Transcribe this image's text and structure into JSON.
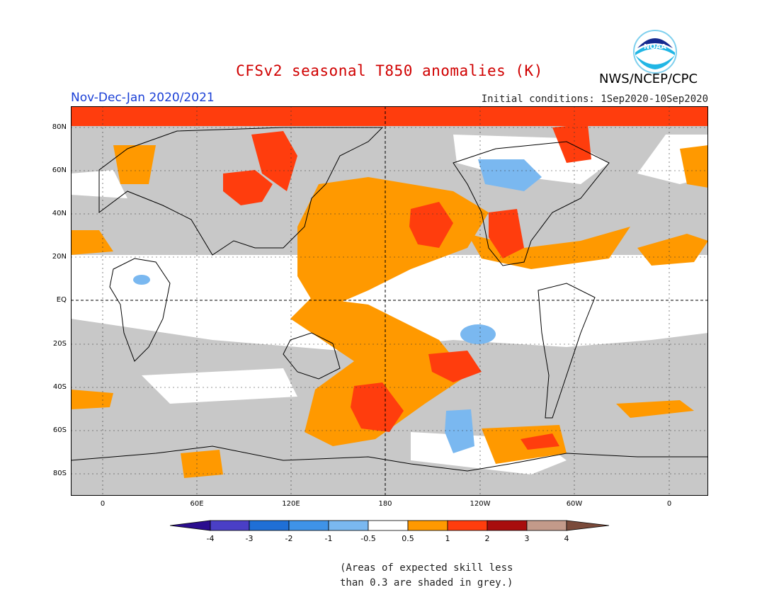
{
  "title": "CFSv2 seasonal T850 anomalies (K)",
  "season": "Nov-Dec-Jan 2020/2021",
  "initial_conditions": "Initial conditions: 1Sep2020-10Sep2020",
  "agency": "NWS/NCEP/CPC",
  "logo_text": "NOAA",
  "lat_labels": [
    "80N",
    "60N",
    "40N",
    "20N",
    "EQ",
    "20S",
    "40S",
    "60S",
    "80S"
  ],
  "lon_labels": [
    "0",
    "60E",
    "120E",
    "180",
    "120W",
    "60W",
    "0"
  ],
  "colorbar": {
    "ticks": [
      "-4",
      "-3",
      "-2",
      "-1",
      "-0.5",
      "0.5",
      "1",
      "2",
      "3",
      "4"
    ],
    "colors": [
      "#2b0d8f",
      "#4a3fc6",
      "#1f6fd6",
      "#3f93e8",
      "#7ab8f0",
      "#ffffff",
      "#ff9900",
      "#ff3d0d",
      "#a80d0d",
      "#c39a8a",
      "#7a4a3a"
    ]
  },
  "note_line1": "(Areas of expected skill less",
  "note_line2": "than 0.3 are shaded in grey.)"
}
